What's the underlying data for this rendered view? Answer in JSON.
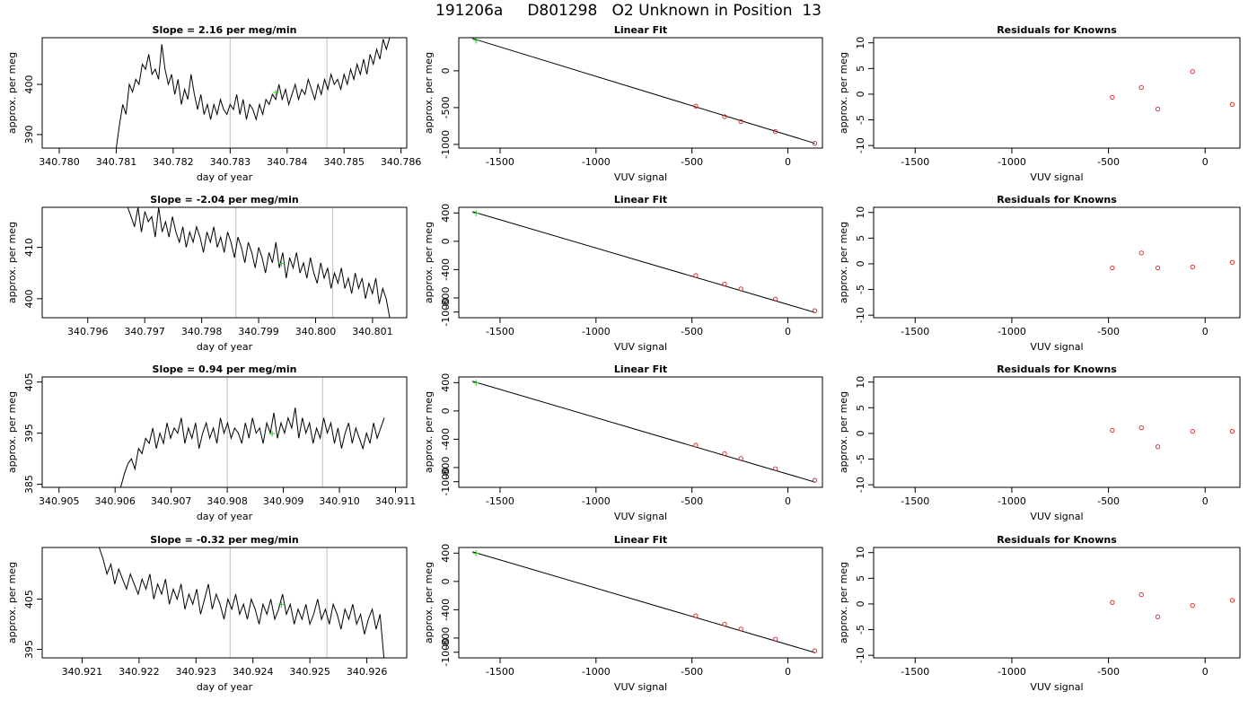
{
  "figure": {
    "title": "191206a     D801298   O2 Unknown in Position  13"
  },
  "chart_data": [
    {
      "type": "line",
      "row": 0,
      "col": 0,
      "title": "Slope =  2.16  per meg/min",
      "xlabel": "day of year",
      "ylabel": "approx. per meg",
      "xlim": [
        340.7797,
        340.7861
      ],
      "ylim": [
        387.3,
        409.3
      ],
      "xticks": [
        340.78,
        340.781,
        340.782,
        340.783,
        340.784,
        340.785,
        340.786
      ],
      "xtick_labels": [
        "340.780",
        "340.781",
        "340.782",
        "340.783",
        "340.784",
        "340.785",
        "340.786"
      ],
      "yticks": [
        390,
        400
      ],
      "ytick_labels": [
        "390",
        "400"
      ],
      "vlines": [
        340.783,
        340.7847
      ],
      "marker": {
        "x": 340.7838,
        "y": 398.5
      },
      "trace": {
        "x_start": 340.781,
        "x_end": 340.7858,
        "y": [
          387.3,
          392,
          396,
          394,
          400,
          398.5,
          401,
          400,
          404,
          403,
          406,
          402,
          403,
          401,
          408,
          403,
          400,
          402,
          398,
          401,
          396,
          399,
          397,
          402,
          398,
          395,
          398,
          394,
          396,
          393,
          396,
          394,
          397,
          395,
          394,
          396,
          395,
          398,
          394,
          397,
          393,
          396,
          395,
          393,
          396,
          394,
          397,
          396,
          398,
          397,
          400,
          397,
          399,
          396,
          398,
          400,
          397,
          399,
          398,
          401,
          399,
          397,
          400,
          398,
          401,
          399,
          402,
          400,
          401,
          399,
          402,
          400,
          403,
          401,
          404,
          402,
          405,
          402,
          406,
          404,
          407,
          405,
          409,
          407,
          409.3
        ]
      }
    },
    {
      "type": "line",
      "row": 0,
      "col": 1,
      "title": "Linear Fit",
      "xlabel": "VUV signal",
      "ylabel": "approx. per meg",
      "xlim": [
        -1715,
        180
      ],
      "ylim": [
        -1050,
        450
      ],
      "xticks": [
        -1500,
        -1000,
        -500,
        0
      ],
      "xtick_labels": [
        "-1500",
        "-1000",
        "-500",
        "0"
      ],
      "yticks": [
        -1000,
        -500,
        0
      ],
      "ytick_labels": [
        "-1000",
        "-500",
        "0"
      ],
      "line": {
        "x": [
          -1645,
          140
        ],
        "y": [
          440,
          -985
        ]
      },
      "known_points": {
        "x": [
          -480,
          -330,
          -245,
          -65,
          140
        ],
        "y": [
          -480,
          -623,
          -690,
          -826,
          -985
        ]
      },
      "unknown_point": {
        "x": [
          -1625
        ],
        "y": [
          420
        ]
      }
    },
    {
      "type": "scatter",
      "row": 0,
      "col": 2,
      "title": "Residuals for Knowns",
      "xlabel": "VUV signal",
      "ylabel": "approx. per meg",
      "xlim": [
        -1715,
        180
      ],
      "ylim": [
        -10.5,
        11
      ],
      "xticks": [
        -1500,
        -1000,
        -500,
        0
      ],
      "xtick_labels": [
        "-1500",
        "-1000",
        "-500",
        "0"
      ],
      "yticks": [
        -10,
        -5,
        0,
        5,
        10
      ],
      "ytick_labels": [
        "-10",
        "-5",
        "0",
        "5",
        "10"
      ],
      "x": [
        -480,
        -330,
        -245,
        -65,
        140
      ],
      "y": [
        -0.6,
        1.3,
        -2.9,
        4.4,
        -2.0
      ]
    },
    {
      "type": "line",
      "row": 1,
      "col": 0,
      "title": "Slope =  -2.04  per meg/min",
      "xlabel": "day of year",
      "ylabel": "approx. per meg",
      "xlim": [
        340.7952,
        340.8016
      ],
      "ylim": [
        396.3,
        417.8
      ],
      "xticks": [
        340.796,
        340.797,
        340.798,
        340.799,
        340.8,
        340.801
      ],
      "xtick_labels": [
        "340.796",
        "340.797",
        "340.798",
        "340.799",
        "340.800",
        "340.801"
      ],
      "yticks": [
        400,
        410
      ],
      "ytick_labels": [
        "400",
        "410"
      ],
      "vlines": [
        340.7986,
        340.8003
      ],
      "marker": {
        "x": 340.7994,
        "y": 407
      },
      "trace": {
        "x_start": 340.7967,
        "x_end": 340.8013,
        "y": [
          417.8,
          416,
          414,
          417.8,
          413,
          417,
          415,
          416,
          412,
          417.8,
          413,
          415,
          412,
          416,
          413,
          411,
          414,
          410,
          413,
          411,
          414,
          412,
          409,
          413,
          411,
          414,
          410,
          412,
          409,
          413,
          411,
          408,
          412,
          410,
          407,
          411,
          409,
          406,
          410,
          408,
          405,
          409,
          407,
          411,
          406,
          409,
          404,
          408,
          406,
          409,
          405,
          407,
          404,
          408,
          405,
          403,
          407,
          404,
          406,
          402,
          405,
          403,
          406,
          402,
          404,
          401,
          405,
          402,
          404,
          400,
          403,
          401,
          404,
          399,
          402,
          400,
          396.3
        ]
      }
    },
    {
      "type": "line",
      "row": 1,
      "col": 1,
      "title": "Linear Fit",
      "xlabel": "VUV signal",
      "ylabel": "approx. per meg",
      "xlim": [
        -1715,
        180
      ],
      "ylim": [
        -1080,
        480
      ],
      "xticks": [
        -1500,
        -1000,
        -500,
        0
      ],
      "xtick_labels": [
        "-1500",
        "-1000",
        "-500",
        "0"
      ],
      "yticks": [
        -1000,
        -800,
        -400,
        0,
        400
      ],
      "ytick_labels": [
        "-1000",
        "-800",
        "-400",
        "0",
        "400"
      ],
      "line": {
        "x": [
          -1645,
          140
        ],
        "y": [
          420,
          -1005
        ]
      },
      "known_points": {
        "x": [
          -480,
          -330,
          -245,
          -65,
          140
        ],
        "y": [
          -485,
          -605,
          -673,
          -817,
          -981
        ]
      },
      "unknown_point": {
        "x": [
          -1625
        ],
        "y": [
          404
        ]
      }
    },
    {
      "type": "scatter",
      "row": 1,
      "col": 2,
      "title": "Residuals for Knowns",
      "xlabel": "VUV signal",
      "ylabel": "approx. per meg",
      "xlim": [
        -1715,
        180
      ],
      "ylim": [
        -10.5,
        11
      ],
      "xticks": [
        -1500,
        -1000,
        -500,
        0
      ],
      "xtick_labels": [
        "-1500",
        "-1000",
        "-500",
        "0"
      ],
      "yticks": [
        -10,
        -5,
        0,
        5,
        10
      ],
      "ytick_labels": [
        "-10",
        "-5",
        "0",
        "5",
        "10"
      ],
      "x": [
        -480,
        -330,
        -245,
        -65,
        140
      ],
      "y": [
        -0.8,
        2.1,
        -0.8,
        -0.6,
        0.3
      ]
    },
    {
      "type": "line",
      "row": 2,
      "col": 0,
      "title": "Slope =  0.94  per meg/min",
      "xlabel": "day of year",
      "ylabel": "approx. per meg",
      "xlim": [
        340.9047,
        340.9112
      ],
      "ylim": [
        384.4,
        406
      ],
      "xticks": [
        340.905,
        340.906,
        340.907,
        340.908,
        340.909,
        340.91,
        340.911
      ],
      "xtick_labels": [
        "340.905",
        "340.906",
        "340.907",
        "340.908",
        "340.909",
        "340.910",
        "340.911"
      ],
      "yticks": [
        385,
        395,
        405
      ],
      "ytick_labels": [
        "385",
        "395",
        "405"
      ],
      "vlines": [
        340.908,
        340.9097
      ],
      "marker": {
        "x": 340.9088,
        "y": 395
      },
      "trace": {
        "x_start": 340.9061,
        "x_end": 340.9108,
        "y": [
          384.4,
          387,
          389,
          390,
          388,
          392,
          391,
          394,
          393,
          396,
          392,
          395,
          393,
          397,
          394,
          396,
          395,
          398,
          393,
          396,
          394,
          397,
          392,
          395,
          397,
          394,
          396,
          393,
          398,
          395,
          397,
          394,
          396,
          395,
          393,
          397,
          394,
          398,
          395,
          396,
          393,
          397,
          395,
          399,
          394,
          397,
          395,
          398,
          396,
          400,
          394,
          398,
          395,
          397,
          393,
          396,
          394,
          398,
          395,
          397,
          393,
          396,
          392,
          395,
          397,
          393,
          396,
          394,
          392,
          395,
          393,
          397,
          394,
          396,
          398
        ]
      }
    },
    {
      "type": "line",
      "row": 2,
      "col": 1,
      "title": "Linear Fit",
      "xlabel": "VUV signal",
      "ylabel": "approx. per meg",
      "xlim": [
        -1715,
        180
      ],
      "ylim": [
        -1080,
        480
      ],
      "xticks": [
        -1500,
        -1000,
        -500,
        0
      ],
      "xtick_labels": [
        "-1500",
        "-1000",
        "-500",
        "0"
      ],
      "yticks": [
        -1000,
        -800,
        -400,
        0,
        400
      ],
      "ytick_labels": [
        "-1000",
        "-800",
        "-400",
        "0",
        "400"
      ],
      "line": {
        "x": [
          -1645,
          140
        ],
        "y": [
          420,
          -1005
        ]
      },
      "known_points": {
        "x": [
          -480,
          -330,
          -245,
          -65,
          140
        ],
        "y": [
          -485,
          -605,
          -673,
          -817,
          -981
        ]
      },
      "unknown_point": {
        "x": [
          -1625
        ],
        "y": [
          404
        ]
      }
    },
    {
      "type": "scatter",
      "row": 2,
      "col": 2,
      "title": "Residuals for Knowns",
      "xlabel": "VUV signal",
      "ylabel": "approx. per meg",
      "xlim": [
        -1715,
        180
      ],
      "ylim": [
        -10.5,
        11
      ],
      "xticks": [
        -1500,
        -1000,
        -500,
        0
      ],
      "xtick_labels": [
        "-1500",
        "-1000",
        "-500",
        "0"
      ],
      "yticks": [
        -10,
        -5,
        0,
        5,
        10
      ],
      "ytick_labels": [
        "-10",
        "-5",
        "0",
        "5",
        "10"
      ],
      "x": [
        -480,
        -330,
        -245,
        -65,
        140
      ],
      "y": [
        0.6,
        1.1,
        -2.6,
        0.4,
        0.4
      ]
    },
    {
      "type": "line",
      "row": 3,
      "col": 0,
      "title": "Slope =  -0.32  per meg/min",
      "xlabel": "day of year",
      "ylabel": "approx. per meg",
      "xlim": [
        340.9203,
        340.9267
      ],
      "ylim": [
        393.3,
        415.3
      ],
      "xticks": [
        340.921,
        340.922,
        340.923,
        340.924,
        340.925,
        340.926
      ],
      "xtick_labels": [
        "340.921",
        "340.922",
        "340.923",
        "340.924",
        "340.925",
        "340.926"
      ],
      "yticks": [
        395,
        405
      ],
      "ytick_labels": [
        "395",
        "405"
      ],
      "vlines": [
        340.9236,
        340.9253
      ],
      "marker": {
        "x": 340.9245,
        "y": 404
      },
      "trace": {
        "x_start": 340.9213,
        "x_end": 340.9263,
        "y": [
          415.3,
          413,
          410,
          412,
          408,
          411,
          409,
          407,
          410,
          408,
          406,
          409,
          407,
          410,
          405,
          408,
          406,
          409,
          404,
          407,
          405,
          408,
          403,
          406,
          404,
          407,
          402,
          405,
          408,
          403,
          406,
          404,
          401,
          405,
          403,
          406,
          402,
          404,
          401,
          405,
          403,
          400,
          404,
          402,
          405,
          401,
          403,
          406,
          402,
          404,
          400,
          403,
          401,
          404,
          400,
          402,
          405,
          401,
          403,
          400,
          404,
          402,
          399,
          403,
          401,
          404,
          400,
          402,
          398,
          401,
          403,
          399,
          402,
          393.3
        ]
      }
    },
    {
      "type": "line",
      "row": 3,
      "col": 1,
      "title": "Linear Fit",
      "xlabel": "VUV signal",
      "ylabel": "approx. per meg",
      "xlim": [
        -1715,
        180
      ],
      "ylim": [
        -1080,
        480
      ],
      "xticks": [
        -1500,
        -1000,
        -500,
        0
      ],
      "xtick_labels": [
        "-1500",
        "-1000",
        "-500",
        "0"
      ],
      "yticks": [
        -1000,
        -800,
        -400,
        0,
        400
      ],
      "ytick_labels": [
        "-1000",
        "-800",
        "-400",
        "0",
        "400"
      ],
      "line": {
        "x": [
          -1645,
          140
        ],
        "y": [
          420,
          -1005
        ]
      },
      "known_points": {
        "x": [
          -480,
          -330,
          -245,
          -65,
          140
        ],
        "y": [
          -485,
          -605,
          -673,
          -817,
          -981
        ]
      },
      "unknown_point": {
        "x": [
          -1625
        ],
        "y": [
          404
        ]
      }
    },
    {
      "type": "scatter",
      "row": 3,
      "col": 2,
      "title": "Residuals for Knowns",
      "xlabel": "VUV signal",
      "ylabel": "approx. per meg",
      "xlim": [
        -1715,
        180
      ],
      "ylim": [
        -10.5,
        11
      ],
      "xticks": [
        -1500,
        -1000,
        -500,
        0
      ],
      "xtick_labels": [
        "-1500",
        "-1000",
        "-500",
        "0"
      ],
      "yticks": [
        -10,
        -5,
        0,
        5,
        10
      ],
      "ytick_labels": [
        "-10",
        "-5",
        "0",
        "5",
        "10"
      ],
      "x": [
        -480,
        -330,
        -245,
        -65,
        140
      ],
      "y": [
        0.3,
        1.8,
        -2.5,
        -0.3,
        0.7
      ]
    }
  ]
}
